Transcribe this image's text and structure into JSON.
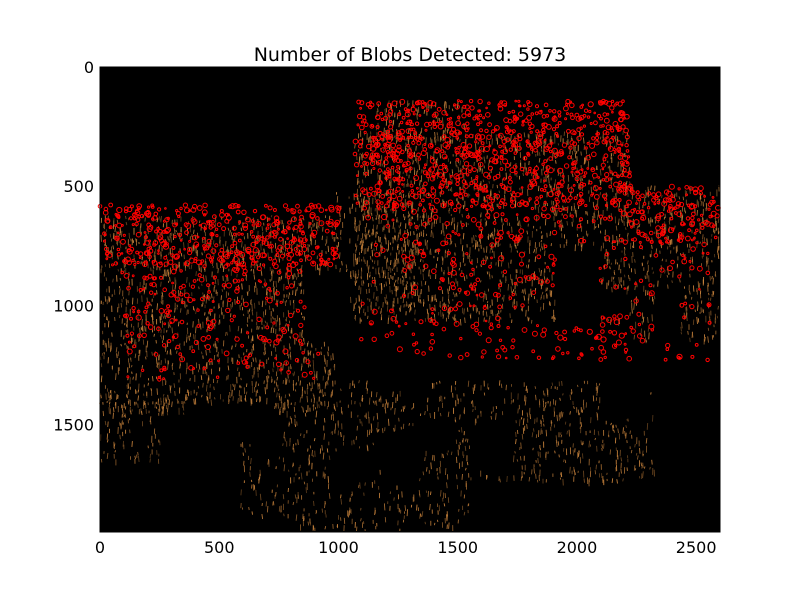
{
  "title": "Number of Blobs Detected: 5973",
  "image": {
    "description_name": "blob-detection-overlay",
    "background_color": "#000000",
    "blob_color": "#ff0000",
    "texture_color": "#c8833c"
  },
  "axes": {
    "x_ticks": [
      "0",
      "500",
      "1000",
      "1500",
      "2000",
      "2500"
    ],
    "y_ticks": [
      "0",
      "500",
      "1000",
      "1500"
    ],
    "x_range": [
      0,
      2600
    ],
    "y_range": [
      1950,
      0
    ]
  }
}
